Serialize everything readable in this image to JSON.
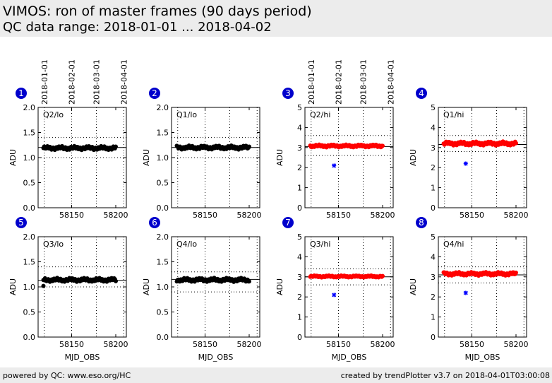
{
  "header": {
    "title": "VIMOS: ron of master frames (90 days period)",
    "subtitle": "QC data range: 2018-01-01 ... 2018-04-02"
  },
  "footer": {
    "left": "powered by QC: www.eso.org/HC",
    "right": "created by trendPlotter v3.7 on 2018-04-01T03:00:08"
  },
  "top_date_ticks": [
    "2018-01-01",
    "2018-02-01",
    "2018-03-01",
    "2018-04-01"
  ],
  "colors": {
    "lo": "#000000",
    "hi": "#ff0000",
    "outlier": "#0000ff",
    "badge": "#0000cc"
  },
  "chart_data": [
    {
      "type": "scatter",
      "panel": "1",
      "label": "Q2/lo",
      "xlabel": "",
      "ylabel": "ADU",
      "ylim": [
        0,
        2.0
      ],
      "yticks": [
        "0.0",
        "0.5",
        "1.0",
        "1.5",
        "2.0"
      ],
      "xticks": [
        "58150",
        "58200"
      ],
      "xlim": [
        58112,
        58212
      ],
      "ref": 1.2,
      "dotted_lines": [
        1.0,
        1.4
      ],
      "base": 1.19,
      "amp": 0.04,
      "series_color": "lo",
      "outliers": []
    },
    {
      "type": "scatter",
      "panel": "2",
      "label": "Q1/lo",
      "xlabel": "",
      "ylabel": "ADU",
      "ylim": [
        0,
        2.0
      ],
      "yticks": [
        "0.0",
        "0.5",
        "1.0",
        "1.5",
        "2.0"
      ],
      "xticks": [
        "58150",
        "58200"
      ],
      "xlim": [
        58112,
        58212
      ],
      "ref": 1.2,
      "dotted_lines": [
        1.0,
        1.4
      ],
      "base": 1.2,
      "amp": 0.04,
      "series_color": "lo",
      "outliers": []
    },
    {
      "type": "scatter",
      "panel": "3",
      "label": "Q2/hi",
      "xlabel": "",
      "ylabel": "ADU",
      "ylim": [
        0,
        5
      ],
      "yticks": [
        "0",
        "1",
        "2",
        "3",
        "4",
        "5"
      ],
      "xticks": [
        "58150",
        "58200"
      ],
      "xlim": [
        58112,
        58212
      ],
      "ref": 3.05,
      "dotted_lines": [
        2.6,
        3.6
      ],
      "base": 3.08,
      "amp": 0.07,
      "series_color": "hi",
      "outliers": [
        {
          "x": 58145,
          "y": 2.1
        }
      ]
    },
    {
      "type": "scatter",
      "panel": "4",
      "label": "Q1/hi",
      "xlabel": "",
      "ylabel": "ADU",
      "ylim": [
        0,
        5
      ],
      "yticks": [
        "0",
        "1",
        "2",
        "3",
        "4",
        "5"
      ],
      "xticks": [
        "58150",
        "58200"
      ],
      "xlim": [
        58112,
        58212
      ],
      "ref": 3.15,
      "dotted_lines": [
        2.8,
        3.6
      ],
      "base": 3.2,
      "amp": 0.1,
      "series_color": "hi",
      "outliers": [
        {
          "x": 58143,
          "y": 2.2
        }
      ]
    },
    {
      "type": "scatter",
      "panel": "5",
      "label": "Q3/lo",
      "xlabel": "MJD_OBS",
      "ylabel": "ADU",
      "ylim": [
        0,
        2.0
      ],
      "yticks": [
        "0.0",
        "0.5",
        "1.0",
        "1.5",
        "2.0"
      ],
      "xticks": [
        "58150",
        "58200"
      ],
      "xlim": [
        58112,
        58212
      ],
      "ref": 1.13,
      "dotted_lines": [
        1.0,
        1.4
      ],
      "base": 1.14,
      "amp": 0.04,
      "series_color": "lo",
      "outliers": [
        {
          "x": 58118,
          "y": 1.02,
          "color": "lo"
        }
      ]
    },
    {
      "type": "scatter",
      "panel": "6",
      "label": "Q4/lo",
      "xlabel": "MJD_OBS",
      "ylabel": "ADU",
      "ylim": [
        0,
        2.0
      ],
      "yticks": [
        "0.0",
        "0.5",
        "1.0",
        "1.5",
        "2.0"
      ],
      "xticks": [
        "58150",
        "58200"
      ],
      "xlim": [
        58112,
        58212
      ],
      "ref": 1.15,
      "dotted_lines": [
        0.9,
        1.3
      ],
      "base": 1.14,
      "amp": 0.04,
      "series_color": "lo",
      "outliers": []
    },
    {
      "type": "scatter",
      "panel": "7",
      "label": "Q3/hi",
      "xlabel": "MJD_OBS",
      "ylabel": "ADU",
      "ylim": [
        0,
        5
      ],
      "yticks": [
        "0",
        "1",
        "2",
        "3",
        "4",
        "5"
      ],
      "xticks": [
        "58150",
        "58200"
      ],
      "xlim": [
        58112,
        58212
      ],
      "ref": 3.0,
      "dotted_lines": [
        2.6,
        3.4
      ],
      "base": 3.02,
      "amp": 0.05,
      "series_color": "hi",
      "outliers": [
        {
          "x": 58145,
          "y": 2.1
        }
      ]
    },
    {
      "type": "scatter",
      "panel": "8",
      "label": "Q4/hi",
      "xlabel": "MJD_OBS",
      "ylabel": "ADU",
      "ylim": [
        0,
        5
      ],
      "yticks": [
        "0",
        "1",
        "2",
        "3",
        "4",
        "5"
      ],
      "xticks": [
        "58150",
        "58200"
      ],
      "xlim": [
        58112,
        58212
      ],
      "ref": 3.1,
      "dotted_lines": [
        2.7,
        3.5
      ],
      "base": 3.15,
      "amp": 0.09,
      "series_color": "hi",
      "outliers": [
        {
          "x": 58143,
          "y": 2.2
        }
      ]
    }
  ]
}
